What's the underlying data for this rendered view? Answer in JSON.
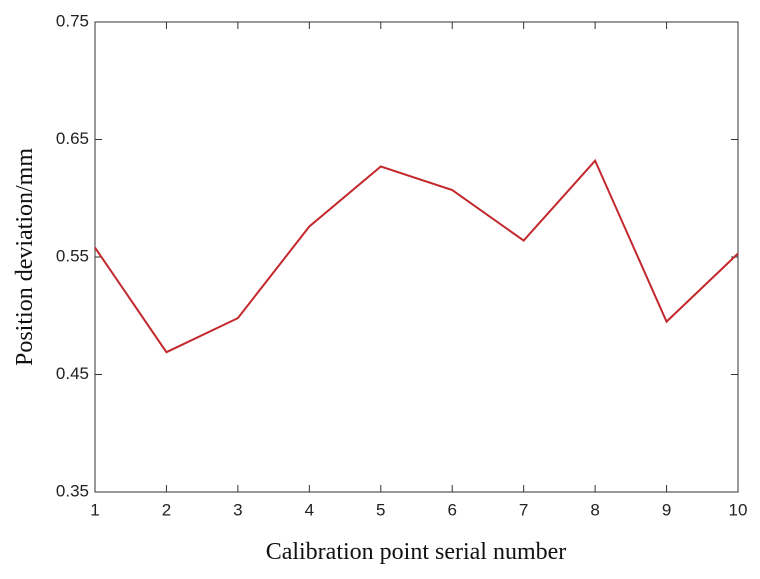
{
  "chart_data": {
    "type": "line",
    "x_label": "Calibration point serial number",
    "y_label": "Position deviation/mm",
    "x": [
      1,
      2,
      3,
      4,
      5,
      6,
      7,
      8,
      9,
      10
    ],
    "series": [
      {
        "color": "#c3282d",
        "values": [
          0.558,
          0.469,
          0.498,
          0.576,
          0.627,
          0.607,
          0.564,
          0.632,
          0.495,
          0.553
        ]
      }
    ],
    "xlim": [
      1,
      10
    ],
    "xticks": [
      1,
      2,
      3,
      4,
      5,
      6,
      7,
      8,
      9,
      10
    ],
    "ylim": [
      0.35,
      0.75
    ],
    "yticks": [
      0.35,
      0.45,
      0.55,
      0.65,
      0.75
    ],
    "grid": false
  }
}
